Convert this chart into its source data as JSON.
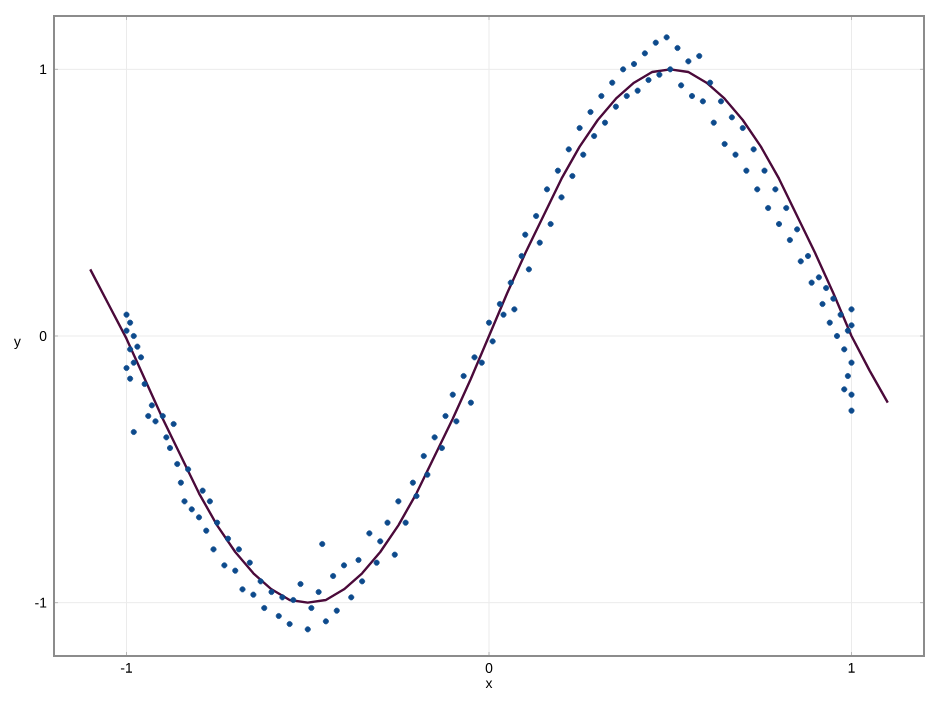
{
  "chart_data": {
    "type": "scatter",
    "xlabel": "x",
    "ylabel": "y",
    "xlim": [
      -1.2,
      1.2
    ],
    "ylim": [
      -1.2,
      1.2
    ],
    "xticks": [
      -1,
      0,
      1
    ],
    "yticks": [
      -1,
      0,
      1
    ],
    "grid": true,
    "series": [
      {
        "type": "scatter",
        "color": "#0d4a8c",
        "marker": "circle",
        "x": [
          -1.0,
          -1.0,
          -0.99,
          -0.99,
          -0.98,
          -1.0,
          -0.98,
          -0.97,
          -0.99,
          -0.96,
          -0.95,
          -0.93,
          -0.94,
          -0.92,
          -0.98,
          -0.9,
          -0.89,
          -0.88,
          -0.87,
          -0.86,
          -0.85,
          -0.84,
          -0.83,
          -0.82,
          -0.8,
          -0.79,
          -0.78,
          -0.77,
          -0.76,
          -0.75,
          -0.73,
          -0.72,
          -0.7,
          -0.69,
          -0.68,
          -0.66,
          -0.65,
          -0.63,
          -0.62,
          -0.6,
          -0.58,
          -0.57,
          -0.55,
          -0.54,
          -0.52,
          -0.5,
          -0.49,
          -0.47,
          -0.46,
          -0.45,
          -0.43,
          -0.42,
          -0.4,
          -0.38,
          -0.36,
          -0.35,
          -0.33,
          -0.31,
          -0.3,
          -0.28,
          -0.26,
          -0.25,
          -0.23,
          -0.21,
          -0.2,
          -0.18,
          -0.17,
          -0.15,
          -0.13,
          -0.12,
          -0.1,
          -0.09,
          -0.07,
          -0.05,
          -0.04,
          -0.02,
          0.0,
          0.01,
          0.03,
          0.04,
          0.06,
          0.07,
          0.09,
          0.1,
          0.11,
          0.13,
          0.14,
          0.16,
          0.17,
          0.19,
          0.2,
          0.22,
          0.23,
          0.25,
          0.26,
          0.28,
          0.29,
          0.31,
          0.32,
          0.34,
          0.35,
          0.37,
          0.38,
          0.4,
          0.41,
          0.43,
          0.44,
          0.46,
          0.47,
          0.49,
          0.5,
          0.52,
          0.53,
          0.55,
          0.56,
          0.58,
          0.59,
          0.61,
          0.62,
          0.64,
          0.65,
          0.67,
          0.68,
          0.7,
          0.71,
          0.73,
          0.74,
          0.76,
          0.77,
          0.79,
          0.8,
          0.82,
          0.83,
          0.85,
          0.86,
          0.88,
          0.89,
          0.91,
          0.92,
          0.93,
          0.94,
          0.95,
          0.96,
          0.97,
          0.98,
          0.99,
          1.0,
          1.0,
          0.99,
          1.0,
          0.98,
          1.0,
          1.0
        ],
        "values": [
          0.08,
          0.02,
          -0.05,
          0.05,
          -0.1,
          -0.12,
          0.0,
          -0.04,
          -0.16,
          -0.08,
          -0.18,
          -0.26,
          -0.3,
          -0.32,
          -0.36,
          -0.3,
          -0.38,
          -0.42,
          -0.33,
          -0.48,
          -0.55,
          -0.62,
          -0.5,
          -0.65,
          -0.68,
          -0.58,
          -0.73,
          -0.62,
          -0.8,
          -0.7,
          -0.86,
          -0.76,
          -0.88,
          -0.8,
          -0.95,
          -0.85,
          -0.97,
          -0.92,
          -1.02,
          -0.96,
          -1.05,
          -0.98,
          -1.08,
          -0.99,
          -0.93,
          -1.1,
          -1.02,
          -0.96,
          -0.78,
          -1.07,
          -0.9,
          -1.03,
          -0.86,
          -0.98,
          -0.84,
          -0.92,
          -0.74,
          -0.85,
          -0.77,
          -0.7,
          -0.82,
          -0.62,
          -0.7,
          -0.55,
          -0.6,
          -0.45,
          -0.52,
          -0.38,
          -0.42,
          -0.3,
          -0.22,
          -0.32,
          -0.15,
          -0.25,
          -0.08,
          -0.1,
          0.05,
          -0.02,
          0.12,
          0.08,
          0.2,
          0.1,
          0.3,
          0.38,
          0.25,
          0.45,
          0.35,
          0.55,
          0.42,
          0.62,
          0.52,
          0.7,
          0.6,
          0.78,
          0.68,
          0.84,
          0.75,
          0.9,
          0.8,
          0.95,
          0.86,
          1.0,
          0.9,
          1.02,
          0.92,
          1.06,
          0.96,
          1.1,
          0.98,
          1.12,
          1.0,
          1.08,
          0.94,
          1.03,
          0.9,
          1.05,
          0.88,
          0.95,
          0.8,
          0.88,
          0.72,
          0.82,
          0.68,
          0.78,
          0.62,
          0.7,
          0.55,
          0.62,
          0.48,
          0.55,
          0.42,
          0.48,
          0.36,
          0.4,
          0.28,
          0.3,
          0.2,
          0.22,
          0.12,
          0.18,
          0.05,
          0.14,
          0.0,
          0.08,
          -0.05,
          0.02,
          -0.1,
          0.1,
          -0.15,
          -0.22,
          -0.2,
          -0.28,
          0.04
        ]
      },
      {
        "type": "line",
        "color": "#4b0a3a",
        "line_style": "solid",
        "x": [
          -1.1,
          -1.05,
          -1.0,
          -0.95,
          -0.9,
          -0.85,
          -0.8,
          -0.75,
          -0.7,
          -0.65,
          -0.6,
          -0.55,
          -0.5,
          -0.45,
          -0.4,
          -0.35,
          -0.3,
          -0.25,
          -0.2,
          -0.15,
          -0.1,
          -0.05,
          0.0,
          0.05,
          0.1,
          0.15,
          0.2,
          0.25,
          0.3,
          0.35,
          0.4,
          0.45,
          0.5,
          0.55,
          0.6,
          0.65,
          0.7,
          0.75,
          0.8,
          0.85,
          0.9,
          0.95,
          1.0,
          1.05,
          1.1
        ],
        "values": [
          0.25,
          0.12,
          -0.01,
          -0.16,
          -0.31,
          -0.45,
          -0.59,
          -0.71,
          -0.81,
          -0.89,
          -0.95,
          -0.99,
          -1.0,
          -0.99,
          -0.95,
          -0.89,
          -0.81,
          -0.71,
          -0.59,
          -0.45,
          -0.31,
          -0.16,
          0.0,
          0.16,
          0.31,
          0.45,
          0.59,
          0.71,
          0.81,
          0.89,
          0.95,
          0.99,
          1.0,
          0.99,
          0.95,
          0.89,
          0.81,
          0.71,
          0.59,
          0.45,
          0.31,
          0.16,
          0.0,
          -0.13,
          -0.25
        ]
      }
    ]
  }
}
